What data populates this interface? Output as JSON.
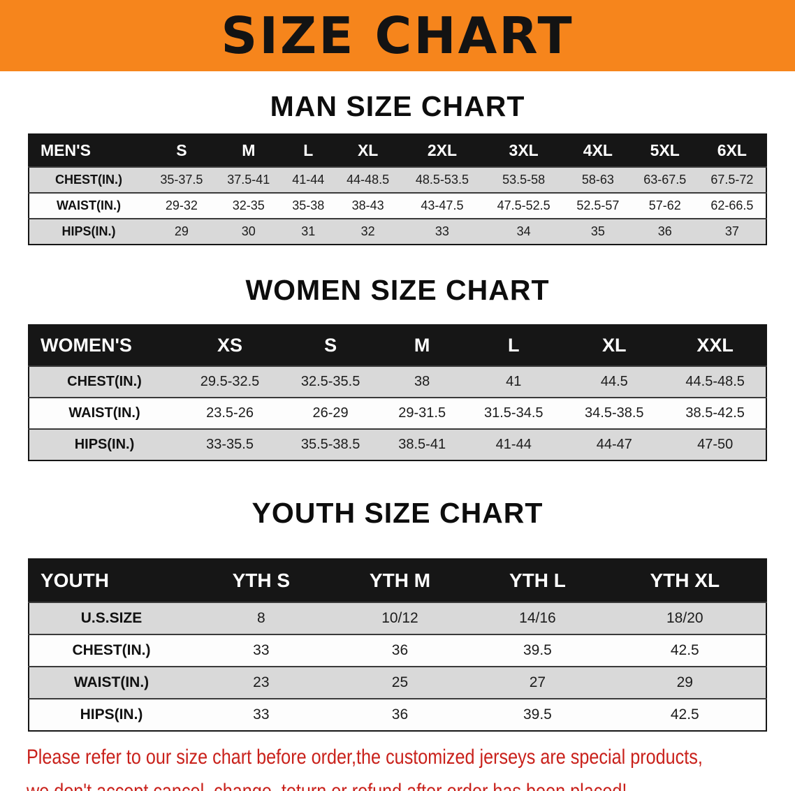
{
  "banner": {
    "title": "SIZE CHART"
  },
  "colors": {
    "banner_bg": "#f6851c",
    "header_row_bg": "#161616",
    "stripe_bg": "#d9d9d9",
    "notice_text": "#c9211b"
  },
  "sections": [
    {
      "heading": "MAN SIZE CHART",
      "table": {
        "header": [
          "MEN'S",
          "S",
          "M",
          "L",
          "XL",
          "2XL",
          "3XL",
          "4XL",
          "5XL",
          "6XL"
        ],
        "rows": [
          [
            "CHEST(IN.)",
            "35-37.5",
            "37.5-41",
            "41-44",
            "44-48.5",
            "48.5-53.5",
            "53.5-58",
            "58-63",
            "63-67.5",
            "67.5-72"
          ],
          [
            "WAIST(IN.)",
            "29-32",
            "32-35",
            "35-38",
            "38-43",
            "43-47.5",
            "47.5-52.5",
            "52.5-57",
            "57-62",
            "62-66.5"
          ],
          [
            "HIPS(IN.)",
            "29",
            "30",
            "31",
            "32",
            "33",
            "34",
            "35",
            "36",
            "37"
          ]
        ]
      }
    },
    {
      "heading": "WOMEN SIZE CHART",
      "table": {
        "header": [
          "WOMEN'S",
          "XS",
          "S",
          "M",
          "L",
          "XL",
          "XXL"
        ],
        "rows": [
          [
            "CHEST(IN.)",
            "29.5-32.5",
            "32.5-35.5",
            "38",
            "41",
            "44.5",
            "44.5-48.5"
          ],
          [
            "WAIST(IN.)",
            "23.5-26",
            "26-29",
            "29-31.5",
            "31.5-34.5",
            "34.5-38.5",
            "38.5-42.5"
          ],
          [
            "HIPS(IN.)",
            "33-35.5",
            "35.5-38.5",
            "38.5-41",
            "41-44",
            "44-47",
            "47-50"
          ]
        ]
      }
    },
    {
      "heading": "YOUTH SIZE CHART",
      "table": {
        "header": [
          "YOUTH",
          "YTH S",
          "YTH M",
          "YTH L",
          "YTH XL"
        ],
        "rows": [
          [
            "U.S.SIZE",
            "8",
            "10/12",
            "14/16",
            "18/20"
          ],
          [
            "CHEST(IN.)",
            "33",
            "36",
            "39.5",
            "42.5"
          ],
          [
            "WAIST(IN.)",
            "23",
            "25",
            "27",
            "29"
          ],
          [
            "HIPS(IN.)",
            "33",
            "36",
            "39.5",
            "42.5"
          ]
        ]
      }
    }
  ],
  "footer": {
    "lines": [
      "Please refer to our size chart before order,the customized jerseys are special products,",
      "we don't accept cancel, change, teturn or refund after order has been placed!"
    ]
  }
}
